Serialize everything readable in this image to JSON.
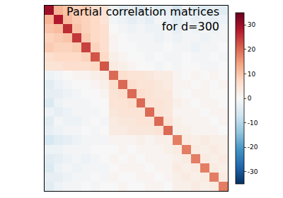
{
  "chart_data": {
    "type": "heatmap",
    "title": "Partial correlation matrices\nfor d=300",
    "tick_labels": false,
    "cells": [
      [
        30,
        12,
        10,
        8,
        9,
        6,
        5,
        -2,
        -4,
        -3,
        -5,
        -2,
        -4,
        -3,
        -6,
        -2,
        -4,
        -5,
        -3,
        -4
      ],
      [
        12,
        28,
        11,
        9,
        8,
        7,
        5,
        -1,
        -2,
        -3,
        -2,
        -3,
        -1,
        -2,
        -4,
        -2,
        -3,
        -2,
        -3,
        -2
      ],
      [
        10,
        11,
        26,
        10,
        8,
        7,
        6,
        0,
        -1,
        -2,
        -1,
        -2,
        -2,
        -1,
        -3,
        -1,
        -2,
        -1,
        -2,
        -1
      ],
      [
        8,
        9,
        10,
        25,
        9,
        7,
        6,
        1,
        0,
        -1,
        -1,
        -1,
        -2,
        -1,
        -2,
        -1,
        -1,
        -2,
        -1,
        -1
      ],
      [
        9,
        8,
        8,
        9,
        24,
        8,
        6,
        1,
        0,
        0,
        -1,
        -1,
        -1,
        0,
        -1,
        -1,
        -2,
        -1,
        -1,
        0
      ],
      [
        6,
        7,
        7,
        7,
        8,
        22,
        7,
        2,
        1,
        0,
        0,
        -1,
        0,
        -1,
        -1,
        0,
        -1,
        -1,
        0,
        -1
      ],
      [
        5,
        5,
        6,
        6,
        6,
        7,
        22,
        3,
        2,
        1,
        0,
        0,
        -1,
        0,
        -1,
        0,
        0,
        -1,
        -1,
        0
      ],
      [
        -2,
        -1,
        0,
        1,
        1,
        2,
        3,
        20,
        6,
        5,
        5,
        4,
        3,
        3,
        1,
        0,
        1,
        0,
        1,
        0
      ],
      [
        -4,
        -2,
        -1,
        0,
        0,
        1,
        2,
        6,
        20,
        6,
        5,
        5,
        4,
        3,
        1,
        1,
        0,
        1,
        0,
        1
      ],
      [
        -3,
        -3,
        -2,
        -1,
        0,
        0,
        1,
        5,
        6,
        20,
        6,
        5,
        4,
        4,
        1,
        0,
        1,
        1,
        0,
        0
      ],
      [
        -5,
        -2,
        -1,
        -1,
        -1,
        0,
        0,
        5,
        5,
        6,
        20,
        5,
        5,
        4,
        2,
        1,
        0,
        1,
        1,
        0
      ],
      [
        -2,
        -3,
        -2,
        -1,
        -1,
        -1,
        0,
        4,
        5,
        5,
        5,
        20,
        5,
        4,
        1,
        1,
        1,
        0,
        1,
        1
      ],
      [
        -4,
        -1,
        -2,
        -2,
        -1,
        0,
        -1,
        3,
        4,
        4,
        5,
        5,
        20,
        5,
        2,
        1,
        1,
        1,
        0,
        1
      ],
      [
        -3,
        -2,
        -1,
        -1,
        0,
        -1,
        0,
        3,
        3,
        4,
        4,
        4,
        5,
        20,
        2,
        2,
        1,
        1,
        1,
        0
      ],
      [
        -6,
        -4,
        -3,
        -2,
        -1,
        -1,
        -1,
        1,
        1,
        1,
        2,
        1,
        2,
        2,
        18,
        3,
        2,
        3,
        2,
        2
      ],
      [
        -2,
        -2,
        -1,
        -1,
        -1,
        0,
        0,
        0,
        1,
        0,
        1,
        1,
        1,
        2,
        3,
        18,
        3,
        2,
        3,
        2
      ],
      [
        -4,
        -3,
        -2,
        -1,
        -2,
        -1,
        0,
        1,
        0,
        1,
        0,
        1,
        1,
        1,
        2,
        3,
        18,
        3,
        2,
        3
      ],
      [
        -5,
        -2,
        -1,
        -2,
        -1,
        -1,
        -1,
        0,
        1,
        1,
        1,
        0,
        1,
        1,
        3,
        2,
        3,
        18,
        3,
        2
      ],
      [
        -3,
        -3,
        -2,
        -1,
        -1,
        0,
        -1,
        1,
        0,
        0,
        1,
        1,
        0,
        1,
        2,
        3,
        2,
        3,
        18,
        3
      ],
      [
        -4,
        -2,
        -1,
        -1,
        0,
        -1,
        0,
        0,
        1,
        0,
        0,
        1,
        1,
        0,
        2,
        2,
        3,
        2,
        3,
        18
      ]
    ],
    "colorbar": {
      "range": [
        -35,
        35
      ],
      "ticks": [
        -30,
        -20,
        -10,
        0,
        10,
        20,
        30
      ]
    }
  }
}
